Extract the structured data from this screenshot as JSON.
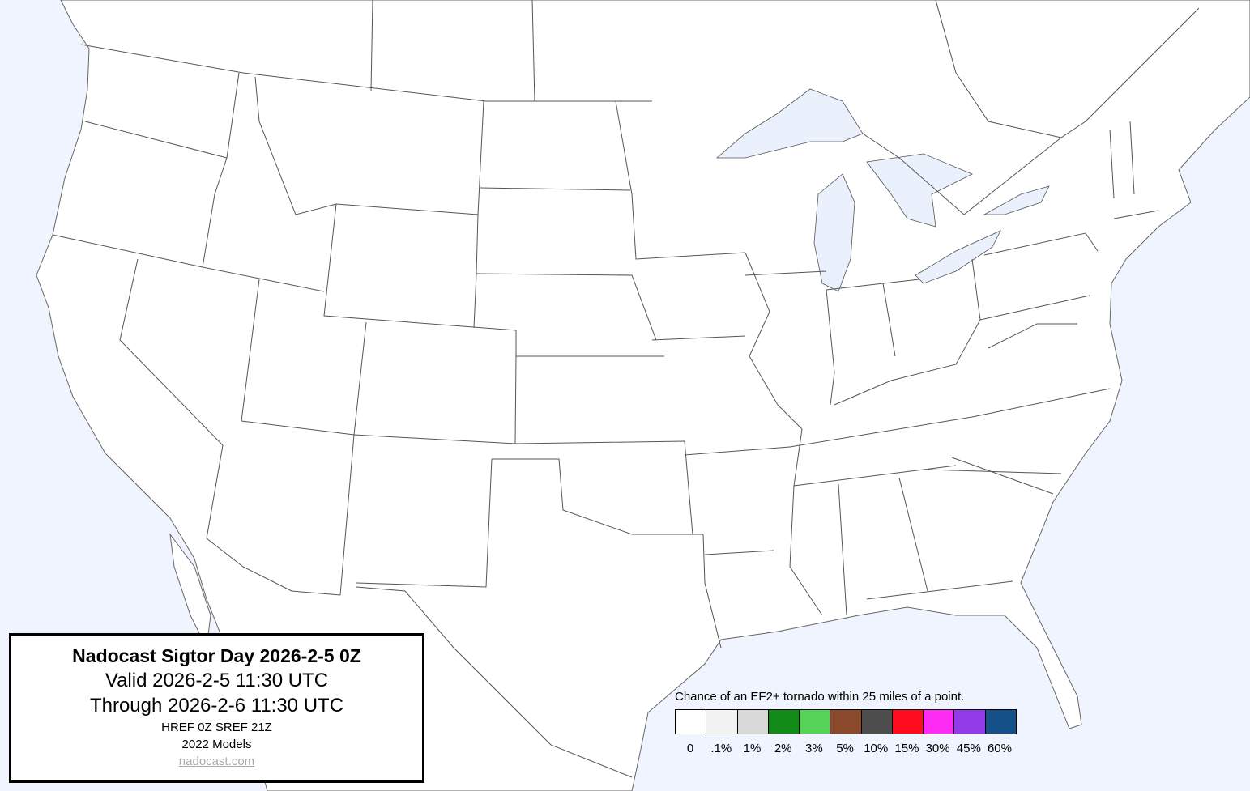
{
  "info": {
    "title": "Nadocast Sigtor Day 2026-2-5 0Z",
    "valid": "Valid 2026-2-5 11:30 UTC",
    "through": "Through 2026-2-6 11:30 UTC",
    "models_run": "HREF 0Z SREF 21Z",
    "models_version": "2022 Models",
    "link": "nadocast.com"
  },
  "legend": {
    "caption": "Chance of an EF2+ tornado within 25 miles of a point.",
    "bins": [
      {
        "label": "0",
        "color": "#ffffff"
      },
      {
        "label": ".1%",
        "color": "#f2f2f2"
      },
      {
        "label": "1%",
        "color": "#d9d9d9"
      },
      {
        "label": "2%",
        "color": "#118a17"
      },
      {
        "label": "3%",
        "color": "#55d359"
      },
      {
        "label": "5%",
        "color": "#8a492b"
      },
      {
        "label": "10%",
        "color": "#4d4d4d"
      },
      {
        "label": "15%",
        "color": "#ff0d1e"
      },
      {
        "label": "30%",
        "color": "#ff2cf5"
      },
      {
        "label": "45%",
        "color": "#933be9"
      },
      {
        "label": "60%",
        "color": "#155089"
      }
    ]
  },
  "map": {
    "ocean_color": "#f0f4fe",
    "land_color": "#ffffff",
    "lake_color": "#eaf0fc"
  }
}
